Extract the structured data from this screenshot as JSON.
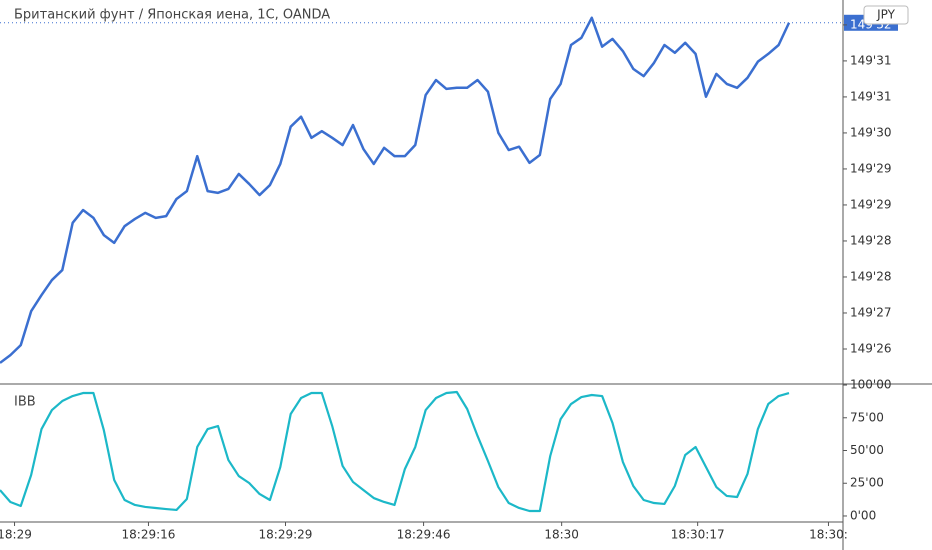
{
  "chart_data": [
    {
      "type": "line",
      "title": "Британский фунт / Японская иена, 1С, OANDA",
      "currency_label": "JPY",
      "color": "#3b6fd0",
      "x": [
        0,
        1,
        2,
        3,
        4,
        5,
        6,
        7,
        8,
        9,
        10,
        11,
        12,
        13,
        14,
        15,
        16,
        17,
        18,
        19,
        20,
        21,
        22,
        23,
        24,
        25,
        26,
        27,
        28,
        29,
        30,
        31,
        32,
        33,
        34,
        35,
        36,
        37,
        38,
        39,
        40,
        41,
        42,
        43,
        44,
        45,
        46,
        47,
        48,
        49,
        50,
        51,
        52,
        53,
        54,
        55,
        56,
        57,
        58,
        59,
        60,
        61,
        62,
        63,
        64,
        65,
        66,
        67,
        68,
        69,
        70,
        71,
        72,
        73,
        74,
        75,
        76
      ],
      "values": [
        149.2597,
        149.2611,
        149.2629,
        149.269,
        149.2719,
        149.2746,
        149.2764,
        149.2849,
        149.2872,
        149.2858,
        149.2827,
        149.2813,
        149.2843,
        149.2856,
        149.2867,
        149.2858,
        149.2861,
        149.2892,
        149.2906,
        149.2969,
        149.2906,
        149.2903,
        149.291,
        149.2937,
        149.2919,
        149.2899,
        149.2917,
        149.2955,
        149.3022,
        149.304,
        149.3002,
        149.3014,
        149.3002,
        149.2989,
        149.3025,
        149.2982,
        149.2955,
        149.2984,
        149.2969,
        149.2969,
        149.2989,
        149.3079,
        149.3106,
        149.309,
        149.3092,
        149.3092,
        149.3106,
        149.3085,
        149.3011,
        149.298,
        149.2986,
        149.2957,
        149.2971,
        149.3072,
        149.3099,
        149.3169,
        149.3182,
        149.3218,
        149.3166,
        149.318,
        149.3158,
        149.3126,
        149.3113,
        149.3137,
        149.3169,
        149.3155,
        149.3173,
        149.3153,
        149.3076,
        149.3117,
        149.3099,
        149.3092,
        149.311,
        149.3139,
        149.3153,
        149.3169,
        149.3209
      ],
      "xlim": [
        0,
        81.2
      ],
      "ylim": [
        149.2559,
        149.325
      ],
      "yticks": [
        {
          "value": 149.2622,
          "label": "149'26"
        },
        {
          "value": 149.26868,
          "label": "149'27"
        },
        {
          "value": 149.27516,
          "label": "149'28"
        },
        {
          "value": 149.28164,
          "label": "149'28"
        },
        {
          "value": 149.28812,
          "label": "149'29"
        },
        {
          "value": 149.2946,
          "label": "149'29"
        },
        {
          "value": 149.30108,
          "label": "149'30"
        },
        {
          "value": 149.30756,
          "label": "149'31"
        },
        {
          "value": 149.31404,
          "label": "149'31"
        },
        {
          "value": 149.32052,
          "label": "149'32"
        }
      ],
      "grid": false
    },
    {
      "type": "line",
      "title": "IBB",
      "color": "#1cb8c8",
      "x": [
        0,
        1,
        2,
        3,
        4,
        5,
        6,
        7,
        8,
        9,
        10,
        11,
        12,
        13,
        14,
        15,
        16,
        17,
        18,
        19,
        20,
        21,
        22,
        23,
        24,
        25,
        26,
        27,
        28,
        29,
        30,
        31,
        32,
        33,
        34,
        35,
        36,
        37,
        38,
        39,
        40,
        41,
        42,
        43,
        44,
        45,
        46,
        47,
        48,
        49,
        50,
        51,
        52,
        53,
        54,
        55,
        56,
        57,
        58,
        59,
        60,
        61,
        62,
        63,
        64,
        65,
        66,
        67,
        68,
        69,
        70,
        71,
        72,
        73,
        74,
        75,
        76
      ],
      "values": [
        19.8,
        10.7,
        7.6,
        31.3,
        66.4,
        80.9,
        87.8,
        91.6,
        93.9,
        93.9,
        65.6,
        27.5,
        12.2,
        8.4,
        6.9,
        6.1,
        5.3,
        4.6,
        13.0,
        52.7,
        66.4,
        68.7,
        42.7,
        30.5,
        25.2,
        16.8,
        12.2,
        37.4,
        77.9,
        90.1,
        93.9,
        93.9,
        68.7,
        38.2,
        26.0,
        19.8,
        13.7,
        10.7,
        8.4,
        35.9,
        52.7,
        80.9,
        90.1,
        93.9,
        94.7,
        81.7,
        61.1,
        42.0,
        22.1,
        9.9,
        6.1,
        3.8,
        3.8,
        45.8,
        74.0,
        85.5,
        90.8,
        92.4,
        91.6,
        71.0,
        41.2,
        22.9,
        12.2,
        9.9,
        9.2,
        22.9,
        46.6,
        52.7,
        37.4,
        22.1,
        15.3,
        14.5,
        32.1,
        66.4,
        85.5,
        91.6,
        93.9
      ],
      "xlim": [
        0,
        81.2
      ],
      "ylim": [
        -4.6,
        100.8
      ],
      "yticks": [
        {
          "value": 0,
          "label": "0'00"
        },
        {
          "value": 25,
          "label": "25'00"
        },
        {
          "value": 50,
          "label": "50'00"
        },
        {
          "value": 75,
          "label": "75'00"
        },
        {
          "value": 100,
          "label": "100'00"
        }
      ],
      "xticks": [
        {
          "value": 1.4,
          "label": "18:29"
        },
        {
          "value": 14.3,
          "label": "18:29:16"
        },
        {
          "value": 27.5,
          "label": "18:29:29"
        },
        {
          "value": 40.8,
          "label": "18:29:46"
        },
        {
          "value": 54.1,
          "label": "18:30"
        },
        {
          "value": 67.2,
          "label": "18:30:17"
        },
        {
          "value": 79.8,
          "label": "18:30:"
        }
      ],
      "grid": false
    }
  ]
}
